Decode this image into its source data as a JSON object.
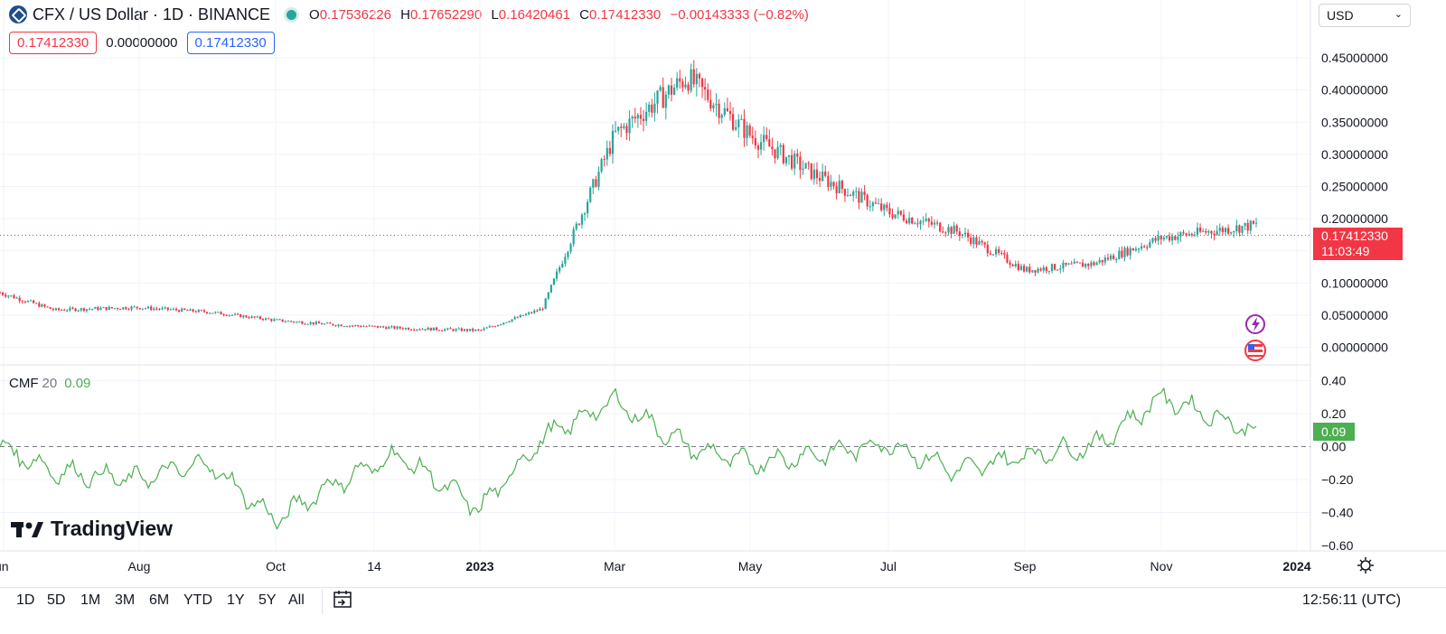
{
  "header": {
    "symbol_title": "CFX / US Dollar · 1D · BINANCE",
    "open_label": "O",
    "open": "0.17536226",
    "high_label": "H",
    "high": "0.17652290",
    "low_label": "L",
    "low": "0.16420461",
    "close_label": "C",
    "close": "0.17412330",
    "change": "−0.00143333 (−0.82%)",
    "indicator_dot_color": "#26a69a"
  },
  "price_boxes": {
    "bid": "0.17412330",
    "spread": "0.00000000",
    "ask": "0.17412330"
  },
  "currency_select": {
    "value": "USD"
  },
  "price_axis": {
    "ticks": [
      "0.45000000",
      "0.40000000",
      "0.35000000",
      "0.30000000",
      "0.25000000",
      "0.20000000",
      "0.10000000",
      "0.05000000",
      "0.00000000"
    ],
    "last_price": "0.17412330",
    "countdown": "11:03:49"
  },
  "cmf": {
    "name": "CMF",
    "length": "20",
    "value": "0.09",
    "ticks": [
      "0.40",
      "0.20",
      "0.00",
      "−0.20",
      "−0.40",
      "−0.60"
    ]
  },
  "time_axis": {
    "labels": [
      "un",
      "Aug",
      "Oct",
      "14",
      "2023",
      "Mar",
      "May",
      "Jul",
      "Sep",
      "Nov",
      "2024"
    ]
  },
  "watermark": "TradingView",
  "range_buttons": [
    "1D",
    "5D",
    "1M",
    "3M",
    "6M",
    "YTD",
    "1Y",
    "5Y",
    "All"
  ],
  "clock": "12:56:11 (UTC)",
  "colors": {
    "up": "#26a69a",
    "down": "#f23645",
    "cmf_line": "#4caf50",
    "accent": "#2962ff"
  },
  "chart_data": [
    {
      "type": "candlestick",
      "title": "CFX / US Dollar · 1D · BINANCE",
      "ylim": [
        -0.02,
        0.49
      ],
      "x": [
        "2022-06",
        "2022-07",
        "2022-08",
        "2022-09",
        "2022-10",
        "2022-11",
        "2022-12",
        "2023-01",
        "2023-02",
        "2023-03",
        "2023-04",
        "2023-05",
        "2023-06",
        "2023-07",
        "2023-08",
        "2023-09",
        "2023-10",
        "2023-11",
        "2023-12"
      ],
      "series": [
        {
          "values": [
            0.085,
            0.058,
            0.062,
            0.055,
            0.042,
            0.036,
            0.03,
            0.026,
            0.06,
            0.33,
            0.42,
            0.33,
            0.27,
            0.21,
            0.18,
            0.12,
            0.13,
            0.17,
            0.19
          ]
        }
      ],
      "last_price": 0.1741233
    },
    {
      "type": "line",
      "title": "CMF 20",
      "ylim": [
        -0.6,
        0.45
      ],
      "x": [
        "2022-06",
        "2022-07",
        "2022-08",
        "2022-09",
        "2022-10",
        "2022-11",
        "2022-12",
        "2023-01",
        "2023-02",
        "2023-03",
        "2023-04",
        "2023-05",
        "2023-06",
        "2023-07",
        "2023-08",
        "2023-09",
        "2023-10",
        "2023-11",
        "2023-12"
      ],
      "series": [
        {
          "values": [
            0.0,
            -0.15,
            -0.2,
            -0.1,
            -0.45,
            -0.25,
            -0.05,
            -0.38,
            0.05,
            0.28,
            0.0,
            -0.1,
            -0.05,
            0.02,
            -0.15,
            -0.05,
            0.0,
            0.3,
            0.09
          ]
        }
      ]
    }
  ]
}
